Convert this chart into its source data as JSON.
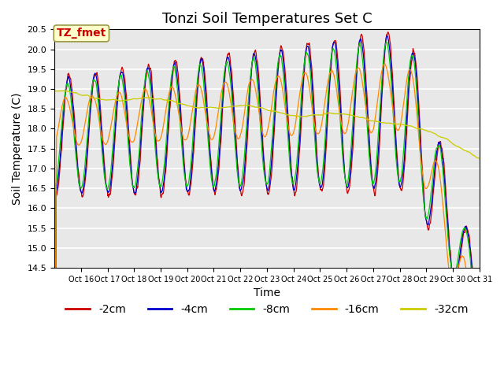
{
  "title": "Tonzi Soil Temperatures Set C",
  "xlabel": "Time",
  "ylabel": "Soil Temperature (C)",
  "ylim": [
    14.5,
    20.5
  ],
  "legend_labels": [
    "-2cm",
    "-4cm",
    "-8cm",
    "-16cm",
    "-32cm"
  ],
  "line_colors": [
    "#cc0000",
    "#0000cc",
    "#00cc00",
    "#ff8800",
    "#cccc00"
  ],
  "annotation_text": "TZ_fmet",
  "annotation_color": "#cc0000",
  "annotation_bg": "#ffffcc",
  "bg_color": "#e8e8e8",
  "title_fontsize": 13,
  "axis_fontsize": 10,
  "legend_fontsize": 10
}
